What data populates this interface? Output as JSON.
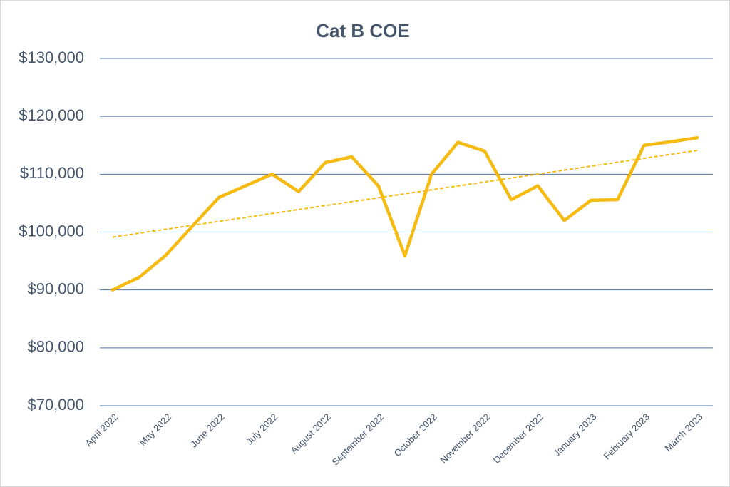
{
  "chart_data": {
    "type": "line",
    "title": "Cat B COE",
    "categories": [
      "April 2022",
      null,
      "May 2022",
      null,
      "June 2022",
      null,
      "July 2022",
      null,
      "August 2022",
      null,
      "September 2022",
      null,
      "October 2022",
      null,
      "November 2022",
      null,
      "December 2022",
      null,
      "January 2023",
      null,
      "February 2023",
      null,
      "March 2023"
    ],
    "values": [
      90000,
      92200,
      96000,
      101000,
      106000,
      108000,
      110000,
      107000,
      112000,
      113000,
      108000,
      95900,
      110000,
      115500,
      114000,
      105600,
      108000,
      102000,
      105500,
      105600,
      115000,
      115600,
      116300
    ],
    "color": "#f5bb12",
    "ylim": [
      70000,
      130000
    ],
    "yticks": [
      {
        "value": 70000,
        "label": "$70,000"
      },
      {
        "value": 80000,
        "label": "$80,000"
      },
      {
        "value": 90000,
        "label": "$90,000"
      },
      {
        "value": 100000,
        "label": "$100,000"
      },
      {
        "value": 110000,
        "label": "$110,000"
      },
      {
        "value": 120000,
        "label": "$120,000"
      },
      {
        "value": 130000,
        "label": "$130,000"
      }
    ],
    "grid": true,
    "trendline": true
  }
}
